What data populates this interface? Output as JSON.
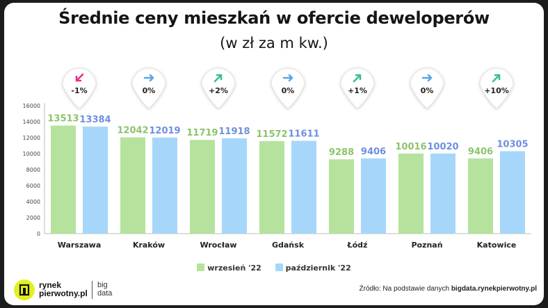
{
  "title": "Średnie ceny mieszkań w ofercie deweloperów",
  "subtitle": "(w zł za m kw.)",
  "colors": {
    "series1": "#b5e39e",
    "series2": "#a6d7fb",
    "label1": "#8cc46a",
    "label2": "#6f8fe0",
    "arrow_down": "#e8308a",
    "arrow_flat": "#5aa5e6",
    "arrow_up": "#35c18a"
  },
  "chart_data": {
    "type": "bar",
    "categories": [
      "Warszawa",
      "Kraków",
      "Wrocław",
      "Gdańsk",
      "Łódź",
      "Poznań",
      "Katowice"
    ],
    "series": [
      {
        "name": "wrzesień '22",
        "values": [
          13513,
          12042,
          11719,
          11572,
          9288,
          10016,
          9406
        ]
      },
      {
        "name": "październik '22",
        "values": [
          13384,
          12019,
          11918,
          11611,
          9406,
          10020,
          10305
        ]
      }
    ],
    "yticks": [
      0,
      2000,
      4000,
      6000,
      8000,
      10000,
      12000,
      14000,
      16000
    ],
    "ylim": [
      0,
      16000
    ],
    "grid": false,
    "legend": "bottom",
    "changes": [
      {
        "label": "-1%",
        "direction": "down"
      },
      {
        "label": "0%",
        "direction": "flat"
      },
      {
        "label": "+2%",
        "direction": "up"
      },
      {
        "label": "0%",
        "direction": "flat"
      },
      {
        "label": "+1%",
        "direction": "up"
      },
      {
        "label": "0%",
        "direction": "flat"
      },
      {
        "label": "+10%",
        "direction": "up"
      }
    ]
  },
  "legend": {
    "series1": "wrzesień '22",
    "series2": "październik '22"
  },
  "footer": {
    "source_prefix": "Źródło: Na podstawie danych ",
    "source_bold": "bigdata.rynekpierwotny.pl",
    "logo_line1": "rynek",
    "logo_line2": "pierwotny.pl",
    "logo_big1": "big",
    "logo_big2": "data"
  }
}
